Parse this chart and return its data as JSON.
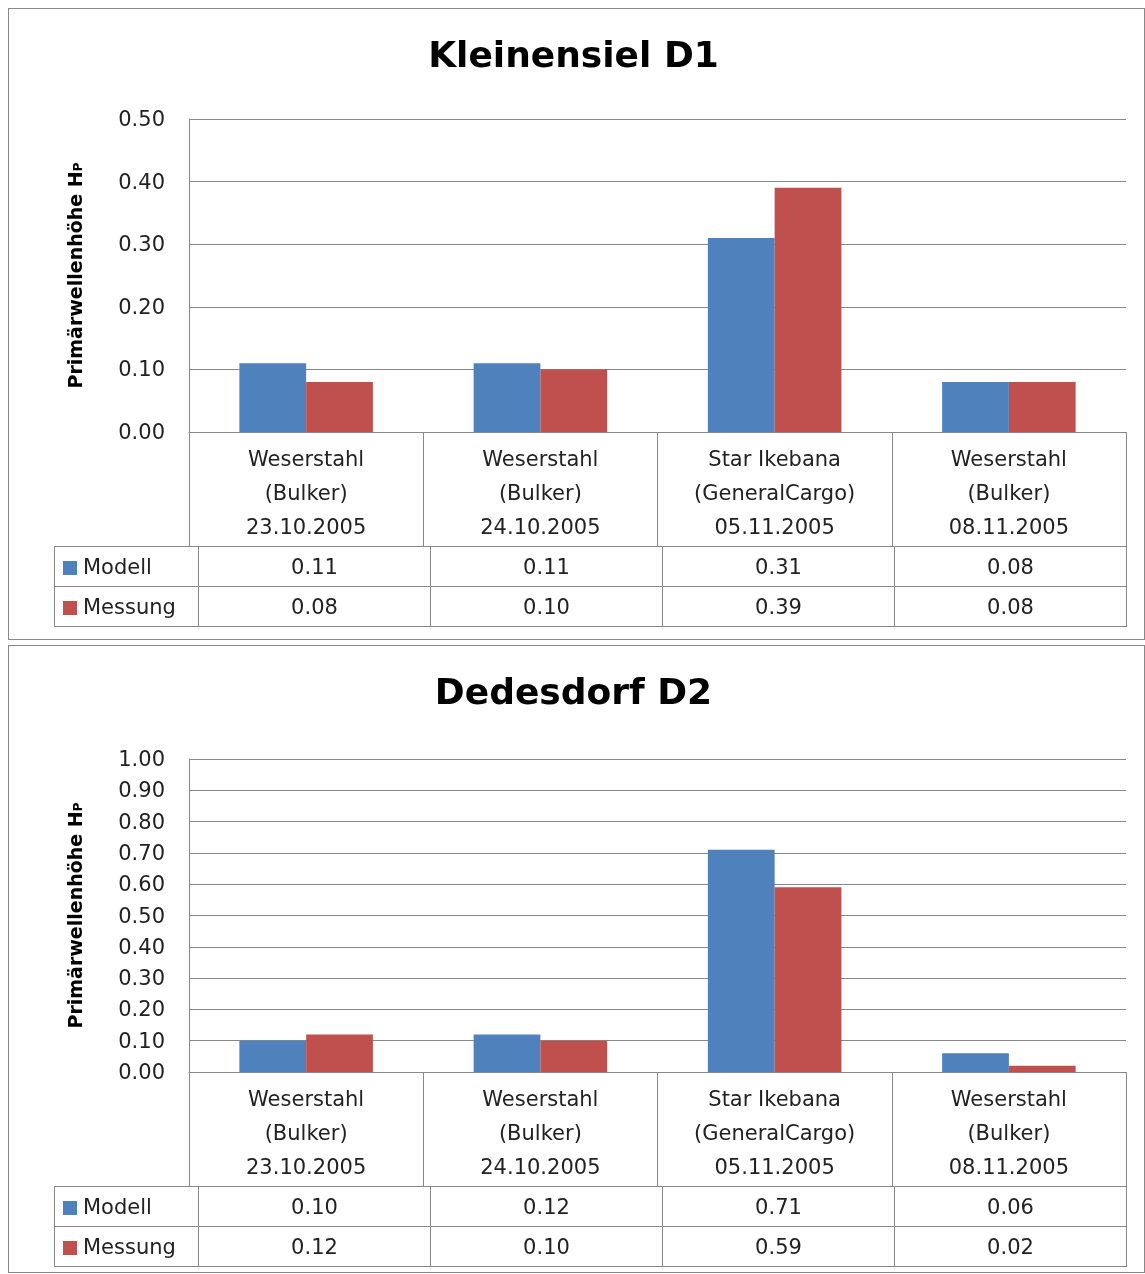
{
  "chart_data": [
    {
      "type": "bar",
      "title": "Kleinensiel D1",
      "ylabel": "Primärwellenhöhe H$_{P}$",
      "categories": [
        "Weserstahl\n(Bulker)\n23.10.2005",
        "Weserstahl\n(Bulker)\n24.10.2005",
        "Star Ikebana\n(GeneralCargo)\n05.11.2005",
        "Weserstahl\n(Bulker)\n08.11.2005"
      ],
      "series": [
        {
          "name": "Modell",
          "color": "#4f81bd",
          "values": [
            0.11,
            0.11,
            0.31,
            0.08
          ],
          "value_labels": [
            "0.11",
            "0.11",
            "0.31",
            "0.08"
          ]
        },
        {
          "name": "Messung",
          "color": "#c0504d",
          "values": [
            0.08,
            0.1,
            0.39,
            0.08
          ],
          "value_labels": [
            "0.08",
            "0.10",
            "0.39",
            "0.08"
          ]
        }
      ],
      "ylim": [
        0,
        0.5
      ],
      "yticks": [
        {
          "value": 0,
          "label": "0.00"
        },
        {
          "value": 0.1,
          "label": "0.10"
        },
        {
          "value": 0.2,
          "label": "0.20"
        },
        {
          "value": 0.3,
          "label": "0.30"
        },
        {
          "value": 0.4,
          "label": "0.40"
        },
        {
          "value": 0.5,
          "label": "0.50"
        }
      ],
      "grid": "y",
      "legend": "bottom"
    },
    {
      "type": "bar",
      "title": "Dedesdorf D2",
      "ylabel": "Primärwellenhöhe H$_{P}$",
      "categories": [
        "Weserstahl\n(Bulker)\n23.10.2005",
        "Weserstahl\n(Bulker)\n24.10.2005",
        "Star Ikebana\n(GeneralCargo)\n05.11.2005",
        "Weserstahl\n(Bulker)\n08.11.2005"
      ],
      "series": [
        {
          "name": "Modell",
          "color": "#4f81bd",
          "values": [
            0.1,
            0.12,
            0.71,
            0.06
          ],
          "value_labels": [
            "0.10",
            "0.12",
            "0.71",
            "0.06"
          ]
        },
        {
          "name": "Messung",
          "color": "#c0504d",
          "values": [
            0.12,
            0.1,
            0.59,
            0.02
          ],
          "value_labels": [
            "0.12",
            "0.10",
            "0.59",
            "0.02"
          ]
        }
      ],
      "ylim": [
        0,
        1
      ],
      "yticks": [
        {
          "value": 0,
          "label": "0.00"
        },
        {
          "value": 0.1,
          "label": "0.10"
        },
        {
          "value": 0.2,
          "label": "0.20"
        },
        {
          "value": 0.3,
          "label": "0.30"
        },
        {
          "value": 0.4,
          "label": "0.40"
        },
        {
          "value": 0.5,
          "label": "0.50"
        },
        {
          "value": 0.6,
          "label": "0.60"
        },
        {
          "value": 0.7,
          "label": "0.70"
        },
        {
          "value": 0.8,
          "label": "0.80"
        },
        {
          "value": 0.9,
          "label": "0.90"
        },
        {
          "value": 1,
          "label": "1.00"
        }
      ],
      "grid": "y",
      "legend": "bottom"
    }
  ]
}
